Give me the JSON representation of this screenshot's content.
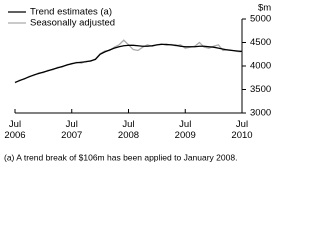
{
  "chart_data": {
    "type": "line",
    "y_label": "$m",
    "footnote": "(a) A trend break of $106m has been applied to January 2008.",
    "categories": [
      "Jul\n2006",
      null,
      null,
      null,
      null,
      null,
      null,
      null,
      null,
      null,
      null,
      null,
      "Jul\n2007",
      null,
      null,
      null,
      null,
      null,
      null,
      null,
      null,
      null,
      null,
      null,
      "Jul\n2008",
      null,
      null,
      null,
      null,
      null,
      null,
      null,
      null,
      null,
      null,
      null,
      "Jul\n2009",
      null,
      null,
      null,
      null,
      null,
      null,
      null,
      null,
      null,
      null,
      null,
      "Jul\n2010"
    ],
    "series": [
      {
        "name": "Trend estimates (a)",
        "color": "#000000",
        "values": [
          3650,
          3690,
          3730,
          3770,
          3810,
          3840,
          3870,
          3900,
          3930,
          3960,
          3990,
          4020,
          4050,
          4070,
          4080,
          4090,
          4110,
          4140,
          4250,
          4300,
          4340,
          4380,
          4410,
          4430,
          4440,
          4440,
          4430,
          4420,
          4420,
          4430,
          4450,
          4460,
          4460,
          4450,
          4440,
          4420,
          4410,
          4410,
          4410,
          4420,
          4420,
          4410,
          4400,
          4380,
          4360,
          4340,
          4330,
          4320,
          4310
        ]
      },
      {
        "name": "Seasonally adjusted",
        "color": "#aaaaaa",
        "values": [
          3640,
          3700,
          3720,
          3780,
          3800,
          3850,
          3860,
          3910,
          3920,
          3970,
          3980,
          4030,
          4040,
          4080,
          4060,
          4100,
          4100,
          4150,
          4260,
          4320,
          4330,
          4400,
          4450,
          4550,
          4450,
          4350,
          4330,
          4400,
          4450,
          4420,
          4450,
          4470,
          4440,
          4460,
          4430,
          4450,
          4380,
          4400,
          4420,
          4500,
          4400,
          4380,
          4420,
          4450,
          4330,
          4350,
          4330,
          4310,
          4300
        ]
      }
    ],
    "ylim": [
      3000,
      5000
    ],
    "yticks": [
      3000,
      3500,
      4000,
      4500,
      5000
    ]
  }
}
